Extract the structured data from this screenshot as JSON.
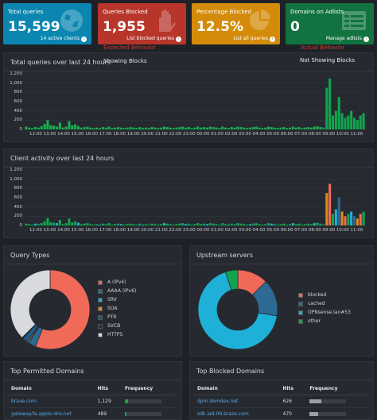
{
  "stats": [
    {
      "title": "Total queries",
      "value": "15,599",
      "footer": "14 active clients",
      "color": "#0a86b0",
      "icon": "globe-icon"
    },
    {
      "title": "Queries Blocked",
      "value": "1,955",
      "footer": "List blocked queries",
      "color": "#b7352a",
      "icon": "hand-icon"
    },
    {
      "title": "Percentage Blocked",
      "value": "12.5%",
      "footer": "List all queries",
      "color": "#d48b0a",
      "icon": "pie-icon"
    },
    {
      "title": "Domains on Adlists",
      "value": "0",
      "footer": "Manage adlists",
      "color": "#11733f",
      "icon": "list-icon"
    }
  ],
  "annotations": {
    "showing_blocks": "Showing Blocks",
    "not_showing_blocks": "Not Showing Blocks",
    "expected": "Expected Behavior",
    "actual": "Actual Behavior"
  },
  "queries_panel": {
    "title": "Total queries over last 24 hours"
  },
  "clients_panel": {
    "title": "Client activity over last 24 hours"
  },
  "y_ticks": [
    "1,200",
    "1,000",
    "800",
    "600",
    "400",
    "200",
    "0"
  ],
  "x_ticks": [
    "12:00",
    "13:00",
    "14:00",
    "15:00",
    "16:00",
    "17:00",
    "18:00",
    "19:00",
    "20:00",
    "21:00",
    "22:00",
    "23:00",
    "00:00",
    "01:00",
    "02:00",
    "03:00",
    "04:00",
    "05:00",
    "06:00",
    "07:00",
    "08:00",
    "09:00",
    "10:00",
    "11:00"
  ],
  "chart_data": [
    {
      "type": "bar",
      "title": "Total queries over last 24 hours",
      "ylim": [
        0,
        1200
      ],
      "series": [
        {
          "values": [
            60,
            40,
            30,
            50,
            40,
            70,
            120,
            200,
            90,
            80,
            60,
            150,
            40,
            60,
            180,
            90,
            110,
            70,
            40,
            50,
            60,
            40,
            30,
            40,
            30,
            50,
            40,
            60,
            30,
            40,
            50,
            40,
            30,
            40,
            50,
            40,
            30,
            50,
            30,
            40,
            30,
            50,
            40,
            30,
            40,
            60,
            50,
            40,
            30,
            40,
            50,
            60,
            40,
            50,
            30,
            40,
            60,
            40,
            50,
            40,
            60,
            50,
            40,
            30,
            60,
            40,
            30,
            50,
            40,
            60,
            50,
            40,
            30,
            40,
            50,
            60,
            40,
            30,
            40,
            60,
            50,
            40,
            30,
            40,
            50,
            30,
            40,
            60,
            40,
            50,
            30,
            40,
            50,
            40,
            60,
            70,
            50,
            40,
            900,
            1100,
            300,
            400,
            700,
            350,
            250,
            300,
            400,
            250,
            200,
            300,
            350
          ]
        }
      ]
    },
    {
      "type": "bar",
      "title": "Client activity over last 24 hours",
      "ylim": [
        0,
        1200
      ],
      "series": [
        {
          "values": [
            40,
            30,
            20,
            40,
            30,
            50,
            90,
            160,
            70,
            60,
            50,
            120,
            30,
            50,
            150,
            70,
            90,
            60,
            30,
            40,
            50,
            30,
            20,
            30,
            20,
            40,
            30,
            50,
            20,
            30,
            40,
            30,
            20,
            30,
            40,
            30,
            20,
            40,
            20,
            30,
            20,
            40,
            30,
            20,
            30,
            50,
            40,
            30,
            20,
            30,
            40,
            50,
            30,
            40,
            20,
            30,
            50,
            30,
            40,
            30,
            50,
            40,
            30,
            20,
            50,
            30,
            20,
            40,
            30,
            50,
            40,
            30,
            20,
            30,
            40,
            50,
            30,
            20,
            30,
            50,
            40,
            30,
            20,
            30,
            40,
            20,
            30,
            50,
            30,
            40,
            20,
            30,
            40,
            30,
            50,
            60,
            40,
            30,
            700,
            900,
            250,
            350,
            600,
            300,
            200,
            250,
            300,
            200,
            150,
            250,
            300
          ]
        }
      ]
    },
    {
      "type": "pie",
      "title": "Query Types",
      "categories": [
        "A (IPv4)",
        "AAAA (IPv6)",
        "SRV",
        "SOA",
        "PTR",
        "SVCB",
        "HTTPS"
      ],
      "values": [
        56,
        3,
        0.5,
        0.5,
        2,
        0.5,
        37.5
      ]
    },
    {
      "type": "pie",
      "title": "Upstream servers",
      "categories": [
        "blocked",
        "cached",
        "OPNsense.lan#53",
        "other"
      ],
      "values": [
        12.5,
        15,
        67.5,
        5
      ]
    }
  ],
  "query_types": {
    "title": "Query Types",
    "legend": [
      {
        "label": "A (IPv4)",
        "color": "#f16a59"
      },
      {
        "label": "AAAA (IPv6)",
        "color": "#2c6a94"
      },
      {
        "label": "SRV",
        "color": "#1fb0d8"
      },
      {
        "label": "SOA",
        "color": "#e08b16"
      },
      {
        "label": "PTR",
        "color": "#1b5d8c"
      },
      {
        "label": "SVCB",
        "color": "#2b2f36"
      },
      {
        "label": "HTTPS",
        "color": "#d8dadd"
      }
    ]
  },
  "upstream": {
    "title": "Upstream servers",
    "legend": [
      {
        "label": "blocked",
        "color": "#f16a59"
      },
      {
        "label": "cached",
        "color": "#2c6a94"
      },
      {
        "label": "OPNsense.lan#53",
        "color": "#1fb0d8"
      },
      {
        "label": "other",
        "color": "#12a54e"
      }
    ]
  },
  "permitted": {
    "title": "Top Permitted Domains",
    "headers": [
      "Domain",
      "Hits",
      "Frequency"
    ],
    "rows": [
      {
        "domain": "brave.com",
        "hits": "1,129",
        "freq": 0.08
      },
      {
        "domain": "gateway.fe.apple-dns.net",
        "hits": "489",
        "freq": 0.04
      }
    ]
  },
  "blocked": {
    "title": "Top Blocked Domains",
    "headers": [
      "Domain",
      "Hits",
      "Frequency"
    ],
    "rows": [
      {
        "domain": "dpm.demdex.net",
        "hits": "626",
        "freq": 0.32
      },
      {
        "domain": "sdk.iad-06.braze.com",
        "hits": "470",
        "freq": 0.24
      }
    ]
  }
}
